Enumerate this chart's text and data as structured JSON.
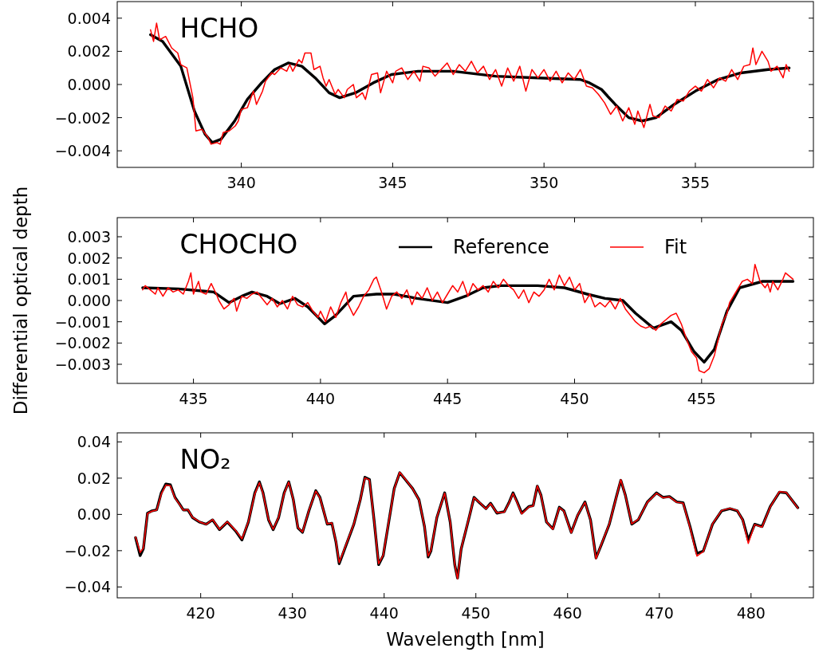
{
  "chart_data": [
    {
      "type": "line",
      "title": "HCHO",
      "xlim": [
        335.9,
        358.9
      ],
      "xticks": [
        340,
        345,
        350,
        355
      ],
      "ylim": [
        -0.005,
        0.005
      ],
      "yticks": [
        {
          "value": -0.004,
          "label": "−0.004"
        },
        {
          "value": -0.002,
          "label": "−0.002"
        },
        {
          "value": 0,
          "label": "0.000"
        },
        {
          "value": 0.002,
          "label": "0.002"
        },
        {
          "value": 0.004,
          "label": "0.004"
        }
      ],
      "series": [
        {
          "color": "#000000",
          "x": [
            337.0,
            337.4,
            338.0,
            338.45,
            338.8,
            339.04,
            339.33,
            339.78,
            340.2,
            340.67,
            341.1,
            341.55,
            342.0,
            342.44,
            342.9,
            343.25,
            343.77,
            344.36,
            344.96,
            345.84,
            347.0,
            348.4,
            349.8,
            351.2,
            351.5,
            351.9,
            352.35,
            352.8,
            353.24,
            353.7,
            354.3,
            355.0,
            355.75,
            356.5,
            357.4,
            358.1
          ],
          "values": [
            0.003,
            0.0026,
            0.0011,
            -0.0016,
            -0.003,
            -0.0035,
            -0.0033,
            -0.0022,
            -0.0009,
            0.0001,
            0.0009,
            0.0013,
            0.0011,
            0.0004,
            -0.0005,
            -0.0008,
            -0.0005,
            0.0001,
            0.0006,
            0.0008,
            0.0008,
            0.0005,
            0.0004,
            0.0003,
            0.0001,
            -0.0003,
            -0.0012,
            -0.002,
            -0.0022,
            -0.002,
            -0.0012,
            -0.0004,
            0.0003,
            0.0007,
            0.0009,
            0.001
          ]
        },
        {
          "color": "#ff0000",
          "x": [
            337.0,
            337.1,
            337.2,
            337.3,
            337.5,
            337.7,
            337.9,
            338.0,
            338.2,
            338.4,
            338.5,
            338.7,
            338.9,
            339.0,
            339.2,
            339.3,
            339.4,
            339.6,
            339.8,
            339.9,
            340.0,
            340.2,
            340.4,
            340.5,
            340.7,
            340.8,
            341.0,
            341.1,
            341.3,
            341.5,
            341.6,
            341.7,
            341.9,
            342.0,
            342.1,
            342.3,
            342.4,
            342.6,
            342.7,
            342.8,
            342.9,
            343.1,
            343.2,
            343.4,
            343.5,
            343.7,
            343.8,
            344.0,
            344.1,
            344.3,
            344.5,
            344.6,
            344.8,
            345.0,
            345.1,
            345.3,
            345.5,
            345.7,
            345.9,
            346.0,
            346.2,
            346.4,
            346.6,
            346.8,
            347.0,
            347.2,
            347.4,
            347.6,
            347.8,
            348.0,
            348.2,
            348.4,
            348.6,
            348.8,
            349.0,
            349.2,
            349.4,
            349.6,
            349.8,
            350.0,
            350.2,
            350.4,
            350.6,
            350.8,
            351.0,
            351.2,
            351.4,
            351.6,
            351.8,
            352.0,
            352.2,
            352.4,
            352.6,
            352.8,
            353.0,
            353.1,
            353.3,
            353.5,
            353.6,
            353.8,
            354.0,
            354.2,
            354.4,
            354.6,
            354.8,
            355.0,
            355.2,
            355.4,
            355.6,
            355.8,
            356.0,
            356.2,
            356.4,
            356.6,
            356.8,
            356.9,
            357.0,
            357.2,
            357.4,
            357.5,
            357.7,
            357.9,
            358.0,
            358.1
          ],
          "values": [
            0.0033,
            0.0026,
            0.0037,
            0.0027,
            0.0029,
            0.0022,
            0.0019,
            0.0012,
            0.001,
            -0.0008,
            -0.0028,
            -0.0027,
            -0.0032,
            -0.0036,
            -0.0035,
            -0.0036,
            -0.0029,
            -0.0028,
            -0.0025,
            -0.0022,
            -0.0015,
            -0.0014,
            -0.0004,
            -0.0012,
            -0.0004,
            0.0002,
            0.0007,
            0.0006,
            0.001,
            0.0008,
            0.0012,
            0.0008,
            0.0015,
            0.0013,
            0.0019,
            0.0019,
            0.0009,
            0.0011,
            0.0004,
            -0.0001,
            0.0003,
            -0.0006,
            -0.0003,
            -0.0008,
            -0.0003,
            0.0,
            -0.0008,
            -0.0005,
            -0.0009,
            0.0006,
            0.0007,
            -0.0005,
            0.0008,
            0.0001,
            0.0008,
            0.001,
            0.0003,
            0.0008,
            0.0002,
            0.0011,
            0.001,
            0.0005,
            0.0009,
            0.0013,
            0.0006,
            0.0012,
            0.0008,
            0.0014,
            0.0007,
            0.0011,
            0.0003,
            0.0009,
            -0.0001,
            0.001,
            0.0002,
            0.0011,
            -0.0004,
            0.0009,
            0.0004,
            0.0009,
            0.0002,
            0.0008,
            0.0001,
            0.0007,
            0.0003,
            0.0009,
            -0.0001,
            -0.0002,
            -0.0006,
            -0.0011,
            -0.0018,
            -0.0013,
            -0.0022,
            -0.0014,
            -0.0024,
            -0.0016,
            -0.0026,
            -0.0012,
            -0.0019,
            -0.002,
            -0.0013,
            -0.0016,
            -0.0009,
            -0.001,
            -0.0004,
            -0.0001,
            -0.0004,
            0.0003,
            -0.0002,
            0.0004,
            0.0002,
            0.0009,
            0.0003,
            0.0011,
            0.0012,
            0.0022,
            0.0012,
            0.002,
            0.0014,
            0.0008,
            0.0011,
            0.0004,
            0.0012,
            0.0008
          ]
        }
      ]
    },
    {
      "type": "line",
      "title": "CHOCHO",
      "ylabel": "Differential optical depth",
      "legend": "top right",
      "xlim": [
        432,
        459.4
      ],
      "xticks": [
        435,
        440,
        445,
        450,
        455
      ],
      "ylim": [
        -0.0039,
        0.0039
      ],
      "yticks": [
        {
          "value": -0.003,
          "label": "−0.003"
        },
        {
          "value": -0.002,
          "label": "−0.002"
        },
        {
          "value": -0.001,
          "label": "−0.001"
        },
        {
          "value": 0,
          "label": "0.000"
        },
        {
          "value": 0.001,
          "label": "0.001"
        },
        {
          "value": 0.002,
          "label": "0.002"
        },
        {
          "value": 0.003,
          "label": "0.003"
        }
      ],
      "series": [
        {
          "name": "Reference",
          "color": "#000000",
          "x": [
            433.0,
            434.4,
            435.8,
            436.4,
            436.9,
            437.3,
            437.9,
            438.4,
            439.0,
            439.5,
            440.16,
            440.6,
            441.3,
            442.2,
            442.9,
            443.8,
            445.0,
            445.7,
            446.4,
            447.1,
            448.55,
            449.6,
            450.5,
            451.2,
            451.9,
            452.4,
            453.1,
            453.8,
            454.2,
            454.7,
            455.1,
            455.5,
            456.0,
            456.5,
            457.4,
            458.6
          ],
          "values": [
            0.0006,
            0.00055,
            0.0004,
            -0.0001,
            0.0002,
            0.0004,
            0.0002,
            -0.00015,
            0.0001,
            -0.0003,
            -0.0011,
            -0.0007,
            0.0002,
            0.0003,
            0.0003,
            0.0001,
            -0.0001,
            0.0002,
            0.0006,
            0.0007,
            0.0007,
            0.0006,
            0.0003,
            0.0001,
            0.0,
            -0.0006,
            -0.0013,
            -0.001,
            -0.0014,
            -0.0024,
            -0.0029,
            -0.0023,
            -0.0005,
            0.0006,
            0.0009,
            0.0009
          ]
        },
        {
          "name": "Fit",
          "color": "#ff0000",
          "x": [
            433.0,
            433.1,
            433.3,
            433.5,
            433.6,
            433.8,
            434.0,
            434.2,
            434.4,
            434.6,
            434.8,
            434.9,
            435.0,
            435.2,
            435.3,
            435.5,
            435.7,
            435.9,
            436.0,
            436.2,
            436.4,
            436.6,
            436.7,
            436.9,
            437.1,
            437.3,
            437.5,
            437.7,
            437.9,
            438.1,
            438.3,
            438.5,
            438.7,
            438.9,
            439.1,
            439.3,
            439.5,
            439.7,
            439.9,
            440.0,
            440.2,
            440.4,
            440.6,
            440.8,
            441.0,
            441.1,
            441.3,
            441.5,
            441.7,
            441.9,
            442.1,
            442.2,
            442.4,
            442.6,
            442.8,
            443.0,
            443.2,
            443.4,
            443.6,
            443.8,
            444.0,
            444.2,
            444.4,
            444.6,
            444.8,
            445.0,
            445.2,
            445.4,
            445.6,
            445.8,
            446.0,
            446.2,
            446.4,
            446.6,
            446.8,
            447.0,
            447.2,
            447.4,
            447.6,
            447.8,
            448.0,
            448.2,
            448.4,
            448.6,
            448.8,
            449.0,
            449.2,
            449.4,
            449.6,
            449.8,
            450.0,
            450.2,
            450.4,
            450.6,
            450.8,
            451.0,
            451.2,
            451.4,
            451.6,
            451.8,
            452.0,
            452.2,
            452.4,
            452.6,
            452.8,
            453.0,
            453.2,
            453.4,
            453.6,
            453.8,
            454.0,
            454.2,
            454.4,
            454.6,
            454.8,
            454.9,
            455.1,
            455.3,
            455.5,
            455.7,
            455.8,
            456.0,
            456.1,
            456.3,
            456.4,
            456.6,
            456.8,
            457.0,
            457.1,
            457.2,
            457.3,
            457.5,
            457.6,
            457.7,
            457.8,
            458.0,
            458.2,
            458.3,
            458.5,
            458.6
          ],
          "values": [
            0.0005,
            0.0007,
            0.0005,
            0.0003,
            0.0006,
            0.0002,
            0.0006,
            0.0004,
            0.0005,
            0.0003,
            0.0009,
            0.0013,
            0.0003,
            0.0009,
            0.0004,
            0.0003,
            0.0008,
            0.0003,
            0.0,
            -0.0004,
            -0.0002,
            0.0001,
            -0.0005,
            0.0002,
            0.0001,
            0.0003,
            0.0004,
            0.0001,
            -0.0002,
            0.0001,
            -0.0003,
            0.0,
            -0.0004,
            0.0002,
            -0.0002,
            -0.0003,
            -0.0001,
            -0.0005,
            -0.0008,
            -0.0005,
            -0.001,
            -0.0003,
            -0.0008,
            -0.0001,
            0.0004,
            -0.0002,
            -0.0007,
            -0.0003,
            0.0002,
            0.0005,
            0.001,
            0.0011,
            0.0004,
            -0.0004,
            0.0002,
            0.0004,
            0.0001,
            0.0005,
            -0.0002,
            0.0004,
            0.0001,
            0.0006,
            0.0,
            0.0004,
            -0.0001,
            0.0003,
            0.0007,
            0.0004,
            0.0009,
            0.0002,
            0.0008,
            0.0005,
            0.0007,
            0.0004,
            0.0009,
            0.0006,
            0.001,
            0.0007,
            0.0005,
            0.0001,
            0.0005,
            -0.0001,
            0.0004,
            0.0002,
            0.0005,
            0.001,
            0.0005,
            0.0012,
            0.0007,
            0.0011,
            0.0005,
            0.0008,
            -0.0001,
            0.0003,
            -0.0003,
            -0.0001,
            -0.0003,
            0.0,
            -0.0004,
            0.0001,
            -0.0004,
            -0.0007,
            -0.001,
            -0.0012,
            -0.0013,
            -0.0012,
            -0.0014,
            -0.0011,
            -0.0009,
            -0.0007,
            -0.0006,
            -0.0011,
            -0.0018,
            -0.0024,
            -0.0027,
            -0.0033,
            -0.0034,
            -0.0032,
            -0.0026,
            -0.0016,
            -0.0011,
            -0.0006,
            -0.0001,
            0.0003,
            0.0005,
            0.0009,
            0.001,
            0.0008,
            0.0017,
            0.0013,
            0.0009,
            0.0006,
            0.0008,
            0.0004,
            0.0009,
            0.0005,
            0.001,
            0.0013,
            0.0011,
            0.001
          ]
        }
      ]
    },
    {
      "type": "line",
      "title": "NO₂",
      "xlabel": "Wavelength [nm]",
      "xlim": [
        410.9,
        486.8
      ],
      "xticks": [
        420,
        430,
        440,
        450,
        460,
        470,
        480
      ],
      "ylim": [
        -0.046,
        0.045
      ],
      "yticks": [
        {
          "value": -0.04,
          "label": "−0.04"
        },
        {
          "value": -0.02,
          "label": "−0.02"
        },
        {
          "value": 0,
          "label": "0.00"
        },
        {
          "value": 0.02,
          "label": "0.02"
        },
        {
          "value": 0.04,
          "label": "0.04"
        }
      ],
      "x": [
        412.9,
        413.4,
        413.75,
        414.2,
        414.7,
        415.2,
        415.7,
        416.2,
        416.7,
        417.2,
        417.7,
        418.1,
        418.6,
        419.1,
        419.85,
        420.6,
        421.3,
        422.05,
        422.9,
        423.8,
        424.5,
        425.2,
        425.9,
        426.4,
        426.8,
        427.4,
        427.9,
        428.5,
        429.1,
        429.6,
        430.1,
        430.6,
        431.1,
        431.8,
        432.55,
        433.0,
        433.8,
        434.3,
        434.75,
        435.1,
        435.7,
        436.7,
        437.4,
        437.9,
        438.4,
        438.9,
        439.4,
        439.9,
        440.5,
        441.1,
        441.7,
        442.3,
        443.1,
        443.8,
        444.4,
        444.8,
        445.1,
        445.75,
        446.6,
        447.2,
        447.7,
        448.0,
        448.4,
        449.2,
        449.8,
        450.4,
        451.1,
        451.6,
        452.3,
        453.1,
        453.6,
        454.05,
        454.5,
        455.0,
        455.8,
        456.25,
        456.7,
        457.1,
        457.7,
        458.4,
        459.1,
        459.6,
        460.4,
        461.1,
        461.9,
        462.5,
        463.1,
        463.7,
        464.55,
        465.3,
        465.8,
        466.3,
        467.0,
        467.7,
        468.7,
        469.7,
        470.4,
        471.1,
        471.9,
        472.6,
        473.35,
        474.1,
        474.8,
        475.8,
        476.8,
        477.7,
        478.5,
        479.1,
        479.7,
        480.4,
        481.2,
        482.1,
        483.1,
        483.85,
        485.1
      ],
      "series": [
        {
          "color": "#000000",
          "values": [
            -0.0128,
            -0.0227,
            -0.019,
            0.0007,
            0.002,
            0.0025,
            0.0119,
            0.0168,
            0.0163,
            0.0094,
            0.0057,
            0.0025,
            0.0025,
            -0.0017,
            -0.0042,
            -0.0054,
            -0.003,
            -0.0084,
            -0.0042,
            -0.0091,
            -0.0141,
            -0.0042,
            0.0119,
            0.018,
            0.0119,
            -0.003,
            -0.0084,
            -0.0017,
            0.0119,
            0.018,
            0.0081,
            -0.0074,
            -0.0099,
            0.002,
            0.0131,
            0.0094,
            -0.0054,
            -0.0049,
            -0.0153,
            -0.0272,
            -0.019,
            -0.0054,
            0.0081,
            0.0205,
            0.0193,
            -0.003,
            -0.0277,
            -0.0227,
            -0.0042,
            0.0143,
            0.023,
            0.0193,
            0.0143,
            0.0081,
            -0.0067,
            -0.0235,
            -0.0202,
            -0.0017,
            0.0119,
            -0.0042,
            -0.0277,
            -0.0351,
            -0.019,
            -0.003,
            0.0094,
            0.0064,
            0.0032,
            0.0062,
            0.0007,
            0.0015,
            0.0064,
            0.0119,
            0.0069,
            0.0007,
            0.0044,
            0.0049,
            0.0156,
            0.0106,
            -0.0042,
            -0.0079,
            0.004,
            0.002,
            -0.0099,
            -0.0005,
            0.0069,
            -0.003,
            -0.024,
            -0.0165,
            -0.0054,
            0.0094,
            0.0188,
            0.0106,
            -0.0054,
            -0.003,
            0.0069,
            0.0119,
            0.0094,
            0.0099,
            0.0069,
            0.0064,
            -0.0067,
            -0.0215,
            -0.0202,
            -0.0054,
            0.002,
            0.0032,
            0.002,
            -0.003,
            -0.0141,
            -0.0054,
            -0.0067,
            0.0044,
            0.0123,
            0.0119,
            0.0037
          ]
        },
        {
          "color": "#ff0000",
          "values": [
            -0.0125,
            -0.021,
            -0.0185,
            0.0005,
            0.0018,
            0.0024,
            0.0112,
            0.0162,
            0.0158,
            0.009,
            0.0055,
            0.0024,
            0.0027,
            -0.0015,
            -0.004,
            -0.0055,
            -0.0028,
            -0.0082,
            -0.004,
            -0.0088,
            -0.0135,
            -0.004,
            0.0113,
            0.0175,
            0.0115,
            -0.0028,
            -0.0082,
            -0.0015,
            0.0115,
            0.0178,
            0.008,
            -0.0072,
            -0.0097,
            0.0022,
            0.0128,
            0.0092,
            -0.0052,
            -0.0047,
            -0.015,
            -0.0265,
            -0.0186,
            -0.0052,
            0.008,
            0.0202,
            0.019,
            -0.0032,
            -0.0272,
            -0.0224,
            -0.004,
            0.014,
            0.0232,
            0.0195,
            0.0142,
            0.008,
            -0.0065,
            -0.023,
            -0.0198,
            -0.0015,
            0.0117,
            -0.004,
            -0.0275,
            -0.0355,
            -0.0188,
            -0.0028,
            0.0092,
            0.0066,
            0.003,
            0.006,
            0.0009,
            0.0013,
            0.0062,
            0.0116,
            0.0065,
            0.0003,
            0.0042,
            0.0047,
            0.0158,
            0.0104,
            -0.004,
            -0.0082,
            0.0038,
            0.0018,
            -0.0102,
            -0.0003,
            0.0067,
            -0.0032,
            -0.0245,
            -0.0162,
            -0.0052,
            0.0092,
            0.0192,
            0.0104,
            -0.0052,
            -0.0028,
            0.0067,
            0.0117,
            0.0092,
            0.0097,
            0.0067,
            0.0062,
            -0.0072,
            -0.023,
            -0.0205,
            -0.0052,
            0.0022,
            0.0034,
            0.0022,
            -0.0032,
            -0.016,
            -0.0056,
            -0.007,
            0.0042,
            0.0126,
            0.0121,
            0.0035
          ]
        }
      ]
    }
  ]
}
